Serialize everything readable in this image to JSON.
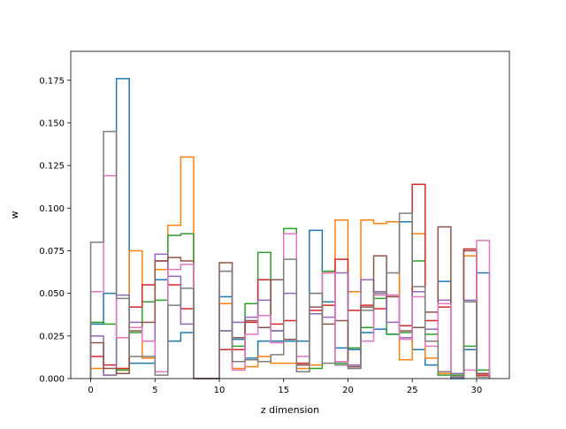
{
  "chart_data": {
    "type": "step",
    "xlabel": "z dimension",
    "ylabel": "w",
    "xlim": [
      -1.55,
      32.55
    ],
    "ylim": [
      0,
      0.192
    ],
    "xticks": [
      0,
      5,
      10,
      15,
      20,
      25,
      30
    ],
    "yticks": [
      0.0,
      0.025,
      0.05,
      0.075,
      0.1,
      0.125,
      0.15,
      0.175
    ],
    "ytick_labels": [
      "0.000",
      "0.025",
      "0.050",
      "0.075",
      "0.100",
      "0.125",
      "0.150",
      "0.175"
    ],
    "bin_edges_start": 0,
    "bin_width": 1,
    "grid": false,
    "series": [
      {
        "color": "#1f77b4",
        "values": [
          0.032,
          0.05,
          0.176,
          0.009,
          0.009,
          0.058,
          0.022,
          0.027,
          0.0,
          0.0,
          0.048,
          0.023,
          0.012,
          0.022,
          0.022,
          0.022,
          0.022,
          0.087,
          0.045,
          0.018,
          0.017,
          0.027,
          0.029,
          0.026,
          0.092,
          0.017,
          0.008,
          0.057,
          0.0,
          0.017,
          0.062
        ]
      },
      {
        "color": "#ff7f0e",
        "values": [
          0.006,
          0.002,
          0.005,
          0.075,
          0.012,
          0.064,
          0.09,
          0.13,
          0.0,
          0.0,
          0.044,
          0.006,
          0.007,
          0.013,
          0.009,
          0.009,
          0.006,
          0.008,
          0.062,
          0.093,
          0.051,
          0.093,
          0.091,
          0.092,
          0.011,
          0.085,
          0.012,
          0.003,
          0.002,
          0.072,
          0.002
        ]
      },
      {
        "color": "#2ca02c",
        "values": [
          0.033,
          0.032,
          0.005,
          0.027,
          0.045,
          0.046,
          0.084,
          0.085,
          0.0,
          0.0,
          0.028,
          0.019,
          0.044,
          0.074,
          0.028,
          0.088,
          0.004,
          0.006,
          0.063,
          0.009,
          0.018,
          0.03,
          0.047,
          0.026,
          0.027,
          0.069,
          0.026,
          0.002,
          0.002,
          0.019,
          0.005
        ]
      },
      {
        "color": "#d62728",
        "values": [
          0.013,
          0.008,
          0.006,
          0.042,
          0.055,
          0.069,
          0.055,
          0.041,
          0.0,
          0.0,
          0.017,
          0.017,
          0.033,
          0.058,
          0.032,
          0.034,
          0.009,
          0.04,
          0.043,
          0.07,
          0.04,
          0.043,
          0.041,
          0.049,
          0.031,
          0.114,
          0.034,
          0.042,
          0.001,
          0.076,
          0.002
        ]
      },
      {
        "color": "#9467bd",
        "values": [
          0.025,
          0.002,
          0.049,
          0.033,
          0.022,
          0.073,
          0.06,
          0.032,
          0.0,
          0.0,
          0.028,
          0.033,
          0.036,
          0.046,
          0.028,
          0.05,
          0.008,
          0.038,
          0.036,
          0.062,
          0.008,
          0.058,
          0.051,
          0.033,
          0.024,
          0.051,
          0.029,
          0.046,
          0.003,
          0.046,
          0.003
        ]
      },
      {
        "color": "#8c564b",
        "values": [
          0.021,
          0.006,
          0.003,
          0.028,
          0.033,
          0.069,
          0.071,
          0.069,
          0.0,
          0.0,
          0.068,
          0.024,
          0.034,
          0.03,
          0.058,
          0.023,
          0.008,
          0.042,
          0.032,
          0.034,
          0.007,
          0.042,
          0.072,
          0.048,
          0.028,
          0.03,
          0.039,
          0.089,
          0.001,
          0.075,
          0.003
        ]
      },
      {
        "color": "#e377c2",
        "values": [
          0.051,
          0.119,
          0.024,
          0.03,
          0.022,
          0.004,
          0.064,
          0.067,
          0.0,
          0.0,
          0.063,
          0.005,
          0.026,
          0.037,
          0.021,
          0.085,
          0.013,
          0.05,
          0.062,
          0.01,
          0.006,
          0.022,
          0.049,
          0.049,
          0.023,
          0.048,
          0.019,
          0.044,
          0.001,
          0.005,
          0.081
        ]
      },
      {
        "color": "#7f7f7f",
        "values": [
          0.08,
          0.145,
          0.047,
          0.013,
          0.013,
          0.002,
          0.043,
          0.053,
          0.0,
          0.0,
          0.063,
          0.01,
          0.011,
          0.01,
          0.014,
          0.07,
          0.004,
          0.05,
          0.009,
          0.008,
          0.006,
          0.04,
          0.05,
          0.062,
          0.097,
          0.054,
          0.022,
          0.004,
          0.001,
          0.045,
          0.001
        ]
      }
    ]
  }
}
